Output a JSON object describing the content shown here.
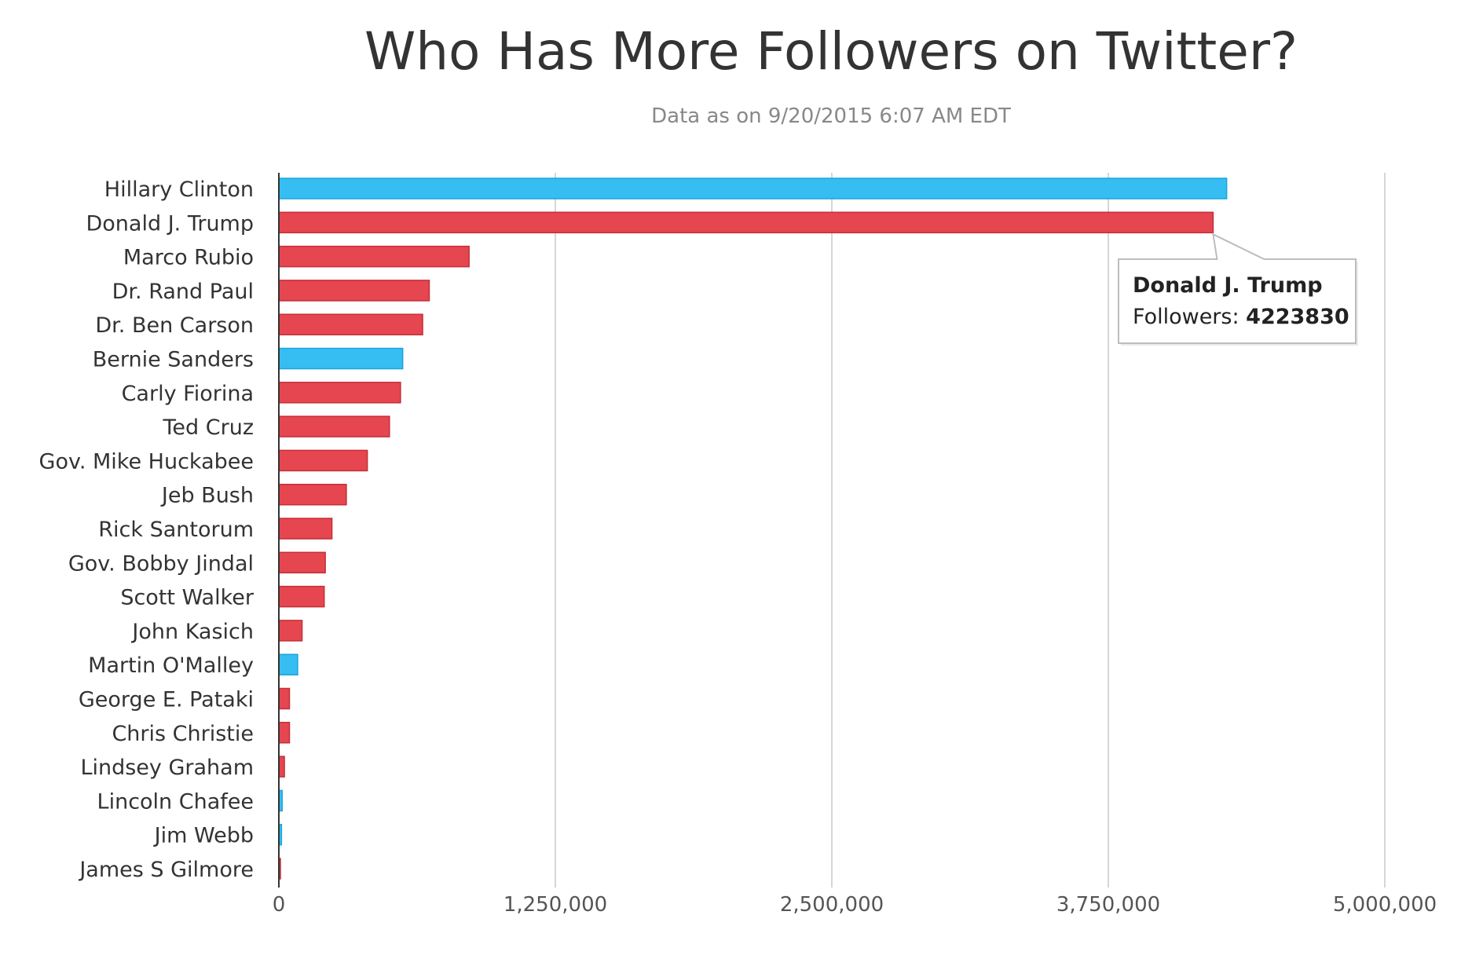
{
  "chart_data": {
    "type": "bar",
    "orientation": "horizontal",
    "title": "Who Has More Followers on Twitter?",
    "subtitle": "Data as on 9/20/2015 6:07 AM EDT",
    "xlabel": "",
    "ylabel": "",
    "xlim": [
      0,
      5000000
    ],
    "x_ticks": [
      "0",
      "1,250,000",
      "2,500,000",
      "3,750,000",
      "5,000,000"
    ],
    "x_tick_values": [
      0,
      1250000,
      2500000,
      3750000,
      5000000
    ],
    "grid": true,
    "legend": "none",
    "colors": {
      "democrat": "#36bdf2",
      "democrat_stroke": "#1aa6dc",
      "republican": "#e6464f",
      "republican_stroke": "#c42f38"
    },
    "categories": [
      "Hillary Clinton",
      "Donald J. Trump",
      "Marco Rubio",
      "Dr. Rand Paul",
      "Dr. Ben Carson",
      "Bernie Sanders",
      "Carly Fiorina",
      "Ted Cruz",
      "Gov. Mike Huckabee",
      "Jeb Bush",
      "Rick Santorum",
      "Gov. Bobby Jindal",
      "Scott Walker",
      "John Kasich",
      "Martin O'Malley",
      "George E. Pataki",
      "Chris Christie",
      "Lindsey Graham",
      "Lincoln Chafee",
      "Jim Webb",
      "James S Gilmore"
    ],
    "values": [
      4285000,
      4223830,
      860000,
      680000,
      650000,
      560000,
      550000,
      500000,
      400000,
      305000,
      240000,
      210000,
      205000,
      105000,
      85000,
      48000,
      48000,
      25000,
      15000,
      12000,
      5000
    ],
    "party": [
      "D",
      "R",
      "R",
      "R",
      "R",
      "D",
      "R",
      "R",
      "R",
      "R",
      "R",
      "R",
      "R",
      "R",
      "D",
      "R",
      "R",
      "R",
      "D",
      "D",
      "R"
    ],
    "tooltip": {
      "name": "Donald J. Trump",
      "label": "Followers: ",
      "value": "4223830",
      "target_index": 1
    }
  }
}
